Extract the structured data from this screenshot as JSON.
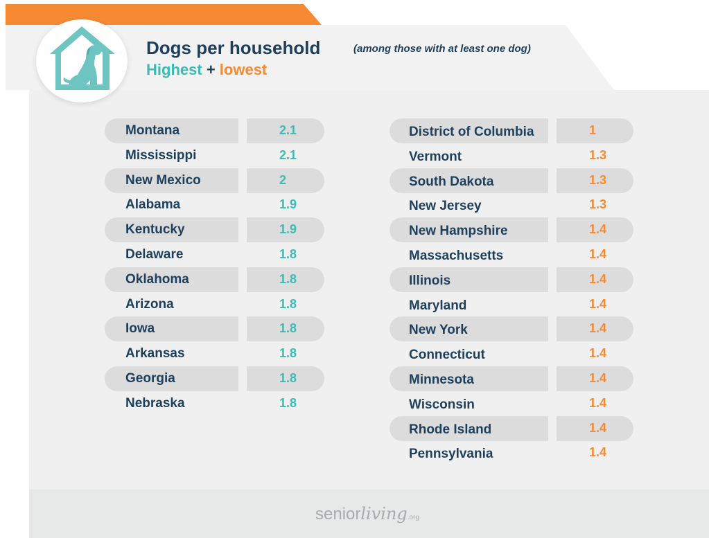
{
  "header": {
    "title": "Dogs per household",
    "subtitle": "(among those with at least one dog)",
    "legend_highest": "Highest",
    "legend_plus": "+",
    "legend_lowest": "lowest"
  },
  "colors": {
    "teal": "#3dbab3",
    "orange": "#f58a32",
    "navy": "#1d3f5b",
    "pill_gray": "#dcdcdc"
  },
  "highest": [
    {
      "state": "Montana",
      "value": "2.1"
    },
    {
      "state": "Mississippi",
      "value": "2.1"
    },
    {
      "state": "New Mexico",
      "value": "2"
    },
    {
      "state": "Alabama",
      "value": "1.9"
    },
    {
      "state": "Kentucky",
      "value": "1.9"
    },
    {
      "state": "Delaware",
      "value": "1.8"
    },
    {
      "state": "Oklahoma",
      "value": "1.8"
    },
    {
      "state": "Arizona",
      "value": "1.8"
    },
    {
      "state": "Iowa",
      "value": "1.8"
    },
    {
      "state": "Arkansas",
      "value": "1.8"
    },
    {
      "state": "Georgia",
      "value": "1.8"
    },
    {
      "state": "Nebraska",
      "value": "1.8"
    }
  ],
  "lowest": [
    {
      "state": "District of Columbia",
      "value": "1"
    },
    {
      "state": "Vermont",
      "value": "1.3"
    },
    {
      "state": "South Dakota",
      "value": "1.3"
    },
    {
      "state": "New Jersey",
      "value": "1.3"
    },
    {
      "state": "New Hampshire",
      "value": "1.4"
    },
    {
      "state": "Massachusetts",
      "value": "1.4"
    },
    {
      "state": "Illinois",
      "value": "1.4"
    },
    {
      "state": "Maryland",
      "value": "1.4"
    },
    {
      "state": "New York",
      "value": "1.4"
    },
    {
      "state": "Connecticut",
      "value": "1.4"
    },
    {
      "state": "Minnesota",
      "value": "1.4"
    },
    {
      "state": "Wisconsin",
      "value": "1.4"
    },
    {
      "state": "Rhode Island",
      "value": "1.4"
    },
    {
      "state": "Pennsylvania",
      "value": "1.4"
    }
  ],
  "footer": {
    "brand_senior": "senior",
    "brand_living": "living",
    "brand_tld": ".org"
  },
  "icons": {
    "logo": "dog-house-icon"
  }
}
